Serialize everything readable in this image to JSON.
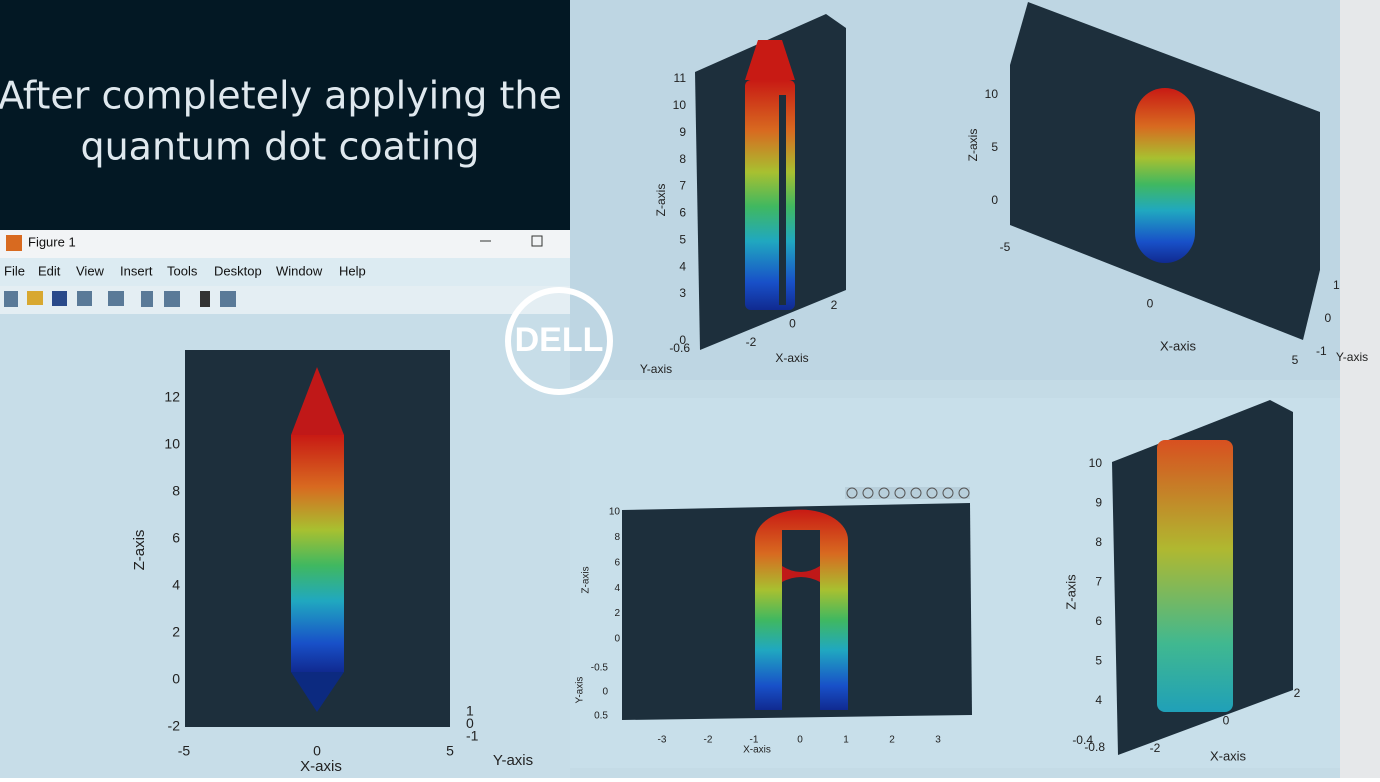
{
  "header": {
    "title": [
      "After completely applying the",
      "quantum dot coating"
    ]
  },
  "window": {
    "title": "Figure 1",
    "menu": [
      "File",
      "Edit",
      "View",
      "Insert",
      "Tools",
      "Desktop",
      "Window",
      "Help"
    ]
  },
  "logo": "DELL",
  "plots": [
    {
      "z_ticks": [
        "12",
        "10",
        "8",
        "6",
        "4",
        "2",
        "0",
        "-2"
      ],
      "x_ticks": [
        "-5",
        "0",
        "5"
      ],
      "y_ticks": [
        "1",
        "0",
        "-1"
      ],
      "z_label": "Z-axis",
      "x_label": "X-axis",
      "y_label": "Y-axis"
    },
    {
      "z_ticks": [
        "11",
        "10",
        "9",
        "8",
        "7",
        "6",
        "5",
        "4",
        "3"
      ],
      "x_ticks": [
        "-2",
        "0",
        "2"
      ],
      "y_ticks": [
        "0",
        "-0.6"
      ],
      "z_label": "Z-axis",
      "x_label": "X-axis",
      "y_label": "Y-axis"
    },
    {
      "z_ticks": [
        "10",
        "5",
        "0"
      ],
      "x_ticks": [
        "-5",
        "0",
        "5"
      ],
      "y_ticks": [
        "1",
        "0",
        "-1"
      ],
      "z_label": "Z-axis",
      "x_label": "X-axis",
      "y_label": "Y-axis"
    },
    {
      "z_ticks": [
        "10",
        "8",
        "6",
        "4",
        "2",
        "0"
      ],
      "x_ticks": [
        "-3",
        "-2",
        "-1",
        "0",
        "1",
        "2",
        "3"
      ],
      "y_ticks": [
        "-0.5",
        "0",
        "0.5"
      ],
      "z_label": "Z-axis",
      "x_label": "X-axis",
      "y_label": "Y-axis"
    },
    {
      "z_ticks": [
        "10",
        "9",
        "8",
        "7",
        "6",
        "5",
        "4"
      ],
      "x_ticks": [
        "-2",
        "0",
        "2"
      ],
      "y_ticks": [
        "-0.4",
        "-0.8"
      ],
      "z_label": "Z-axis",
      "x_label": "X-axis"
    }
  ]
}
